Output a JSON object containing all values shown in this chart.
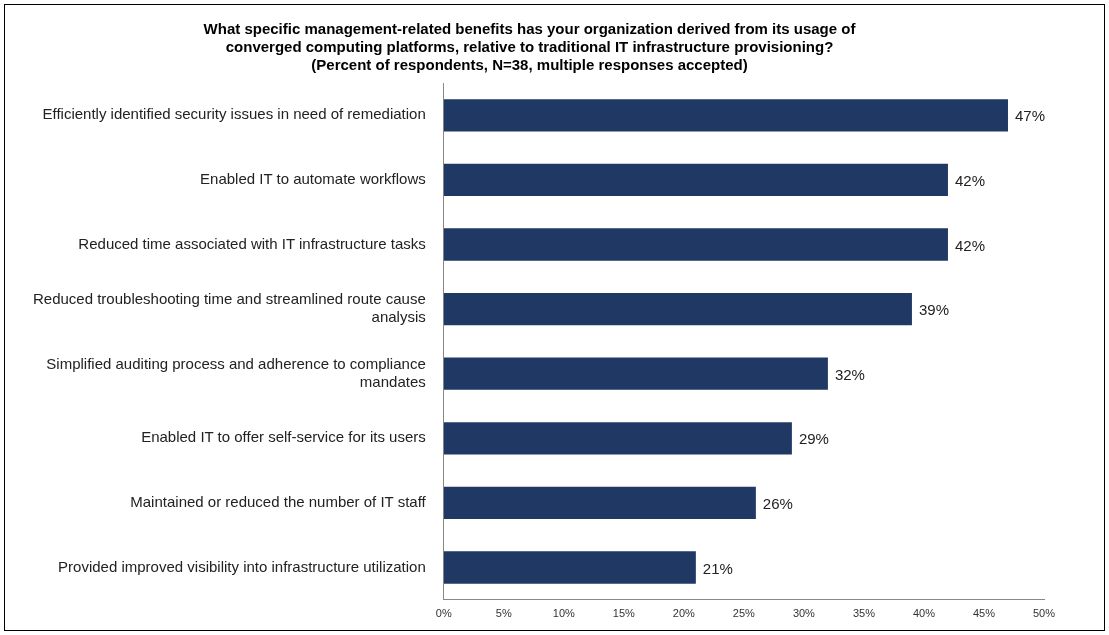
{
  "chart_data": {
    "type": "bar",
    "orientation": "horizontal",
    "title": "What specific management-related benefits has your organization derived from its usage of converged computing platforms, relative to traditional IT infrastructure provisioning?",
    "subtitle": "(Percent of respondents, N=38, multiple responses accepted)",
    "categories": [
      "Efficiently identified security issues in need of remediation",
      "Enabled IT to automate workflows",
      "Reduced time associated with IT infrastructure tasks",
      "Reduced troubleshooting time and streamlined route cause analysis",
      "Simplified auditing process and adherence to compliance mandates",
      "Enabled IT to offer self-service for its users",
      "Maintained or reduced the number of IT staff",
      "Provided improved visibility into infrastructure utilization"
    ],
    "values": [
      47,
      42,
      42,
      39,
      32,
      29,
      26,
      21
    ],
    "value_labels": [
      "47%",
      "42%",
      "42%",
      "39%",
      "32%",
      "29%",
      "26%",
      "21%"
    ],
    "color": "#1f3864",
    "xlim": [
      0,
      50
    ],
    "xticks": [
      {
        "value": 0,
        "label": "0%"
      },
      {
        "value": 5,
        "label": "5%"
      },
      {
        "value": 10,
        "label": "10%"
      },
      {
        "value": 15,
        "label": "15%"
      },
      {
        "value": 20,
        "label": "20%"
      },
      {
        "value": 25,
        "label": "25%"
      },
      {
        "value": 30,
        "label": "30%"
      },
      {
        "value": 35,
        "label": "35%"
      },
      {
        "value": 40,
        "label": "40%"
      },
      {
        "value": 45,
        "label": "45%"
      },
      {
        "value": 50,
        "label": "50%"
      }
    ],
    "grid": false,
    "legend": false
  }
}
